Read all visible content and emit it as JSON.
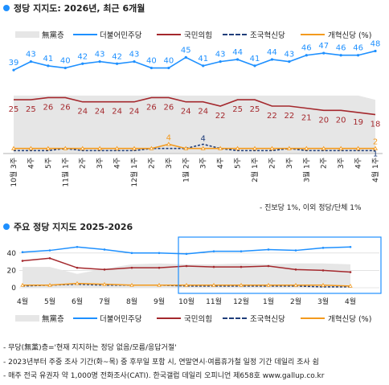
{
  "top": {
    "title": "정당 지지도: 2026년, 최근 6개월",
    "legend": [
      "無黨층",
      "더불어민주당",
      "국민의힘",
      "조국혁신당",
      "개혁신당 (%)"
    ],
    "footnote": "- 진보당 1%, 이외 정당/단체 1%"
  },
  "bottom": {
    "title": "주요 정당 지지도 2025-2026",
    "legend": [
      "無黨층",
      "더불어민주당",
      "국민의힘",
      "조국혁신당",
      "개혁신당 (%)"
    ],
    "notes": [
      "- 무당(無黨)층='현재 지지하는 정당 없음/모름/응답거절'",
      "- 2023년부터 주중 조사 기간(화~목) 중 후무일 포함 시, 연말연시·여름휴가철 일정 기간 데일리 조사 쉼",
      "- 매주 전국 유권자 약 1,000명 전화조사(CATI). 한국갤럽 데일리 오피니언 제658호 www.gallup.co.kr"
    ]
  },
  "colors": {
    "minju": "#1e90ff",
    "ppp": "#a4282d",
    "cho": "#1f3d7a",
    "reform": "#f39a1e",
    "none": "#e6e6e6",
    "accent": "#1e90ff"
  },
  "chart_data": [
    {
      "type": "line",
      "title": "정당 지지도: 2026년, 최근 6개월",
      "categories": [
        "10월 3주",
        "4주",
        "5주",
        "11월 1주",
        "2주",
        "3주",
        "4주",
        "12월 1주",
        "2주",
        "3주",
        "1월 2주",
        "3주",
        "4주",
        "5주",
        "2월 1주",
        "2주",
        "3주",
        "3월 1주",
        "2주",
        "3주",
        "4주",
        "4월 1주"
      ],
      "ylim": [
        0,
        55
      ],
      "series": [
        {
          "name": "더불어민주당",
          "values": [
            39,
            43,
            41,
            40,
            42,
            43,
            42,
            43,
            40,
            40,
            45,
            41,
            43,
            44,
            41,
            44,
            43,
            46,
            47,
            46,
            46,
            48
          ]
        },
        {
          "name": "국민의힘",
          "values": [
            25,
            25,
            26,
            26,
            24,
            24,
            24,
            24,
            26,
            26,
            24,
            24,
            22,
            25,
            25,
            22,
            22,
            21,
            20,
            20,
            19,
            18
          ]
        },
        {
          "name": "조국혁신당",
          "values": [
            1,
            1,
            1,
            2,
            1,
            1,
            1,
            1,
            2,
            2,
            2,
            4,
            2,
            1,
            1,
            1,
            2,
            1,
            1,
            1,
            1,
            1
          ]
        },
        {
          "name": "개혁신당",
          "values": [
            2,
            2,
            2,
            2,
            2,
            2,
            2,
            2,
            2,
            4,
            2,
            2,
            2,
            2,
            2,
            2,
            2,
            2,
            2,
            2,
            2,
            2
          ]
        },
        {
          "name": "無黨층",
          "values": [
            27,
            27,
            27,
            27,
            27,
            27,
            27,
            27,
            27,
            27,
            27,
            27,
            27,
            27,
            27,
            27,
            27,
            27,
            27,
            27,
            27,
            25
          ]
        }
      ],
      "point_labels": {
        "더불어민주당": [
          39,
          43,
          41,
          40,
          42,
          43,
          42,
          43,
          40,
          40,
          45,
          41,
          43,
          44,
          41,
          44,
          43,
          46,
          47,
          46,
          46,
          48
        ],
        "국민의힘": [
          25,
          25,
          26,
          26,
          24,
          24,
          24,
          24,
          26,
          26,
          24,
          24,
          22,
          25,
          25,
          22,
          22,
          21,
          20,
          20,
          19,
          18
        ],
        "조국혁신당": [
          "",
          "",
          "",
          "",
          "",
          "",
          "",
          "",
          "",
          "",
          "",
          "4",
          "",
          "",
          "",
          "",
          "",
          "",
          "",
          "",
          "",
          "1"
        ],
        "개혁신당": [
          "",
          "",
          "",
          "",
          "",
          "",
          "",
          "",
          "",
          "4",
          "",
          "",
          "",
          "",
          "",
          "",
          "",
          "",
          "",
          "",
          "",
          "2"
        ]
      }
    },
    {
      "type": "line",
      "title": "주요 정당 지지도 2025-2026",
      "categories": [
        "4월",
        "5월",
        "6월",
        "7월",
        "8월",
        "9월",
        "10월",
        "11월",
        "12월",
        "1월",
        "2월",
        "3월",
        "4월"
      ],
      "yticks": [
        0,
        20,
        40
      ],
      "ylim": [
        0,
        50
      ],
      "series": [
        {
          "name": "더불어민주당",
          "values": [
            41,
            43,
            47,
            44,
            40,
            40,
            39,
            42,
            42,
            44,
            43,
            46,
            47
          ]
        },
        {
          "name": "국민의힘",
          "values": [
            31,
            34,
            23,
            21,
            23,
            23,
            25,
            24,
            24,
            25,
            21,
            20,
            18
          ]
        },
        {
          "name": "조국혁신당",
          "values": [
            2,
            3,
            4,
            3,
            3,
            3,
            2,
            2,
            2,
            2,
            2,
            1,
            1
          ]
        },
        {
          "name": "개혁신당",
          "values": [
            3,
            3,
            5,
            4,
            3,
            3,
            3,
            3,
            3,
            3,
            3,
            3,
            2
          ]
        },
        {
          "name": "無黨층",
          "values": [
            24,
            24,
            16,
            22,
            27,
            28,
            27,
            27,
            28,
            27,
            28,
            28,
            27
          ]
        }
      ]
    }
  ]
}
